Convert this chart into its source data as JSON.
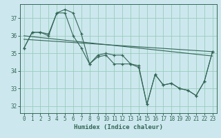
{
  "xlabel": "Humidex (Indice chaleur)",
  "bg_color": "#cce8ee",
  "grid_color": "#99ccbb",
  "line_color": "#336655",
  "xlim": [
    -0.5,
    23.5
  ],
  "ylim": [
    31.6,
    37.8
  ],
  "yticks": [
    32,
    33,
    34,
    35,
    36,
    37
  ],
  "xticks": [
    0,
    1,
    2,
    3,
    4,
    5,
    6,
    7,
    8,
    9,
    10,
    11,
    12,
    13,
    14,
    15,
    16,
    17,
    18,
    19,
    20,
    21,
    22,
    23
  ],
  "series1_x": [
    0,
    1,
    2,
    3,
    4,
    5,
    6,
    7,
    8,
    9,
    10,
    11,
    12,
    13,
    14,
    15,
    16,
    17,
    18,
    19,
    20,
    21,
    22,
    23
  ],
  "series1_y": [
    35.3,
    36.2,
    36.2,
    36.1,
    37.3,
    37.5,
    37.3,
    36.1,
    34.4,
    34.9,
    35.0,
    34.9,
    34.9,
    34.4,
    34.3,
    32.1,
    33.8,
    33.2,
    33.3,
    33.0,
    32.9,
    32.6,
    33.4,
    35.1
  ],
  "series2_x": [
    0,
    1,
    2,
    3,
    4,
    5,
    6,
    7,
    8,
    9,
    10,
    11,
    12,
    13,
    14,
    15,
    16,
    17,
    18,
    19,
    20,
    21,
    22,
    23
  ],
  "series2_y": [
    35.3,
    36.2,
    36.2,
    36.0,
    37.3,
    37.3,
    36.0,
    35.3,
    34.4,
    34.8,
    34.9,
    34.4,
    34.4,
    34.4,
    34.2,
    32.1,
    33.8,
    33.2,
    33.3,
    33.0,
    32.9,
    32.6,
    33.4,
    35.1
  ],
  "trend1_x": [
    0,
    23
  ],
  "trend1_y": [
    36.0,
    34.85
  ],
  "trend2_x": [
    0,
    23
  ],
  "trend2_y": [
    35.8,
    35.1
  ]
}
